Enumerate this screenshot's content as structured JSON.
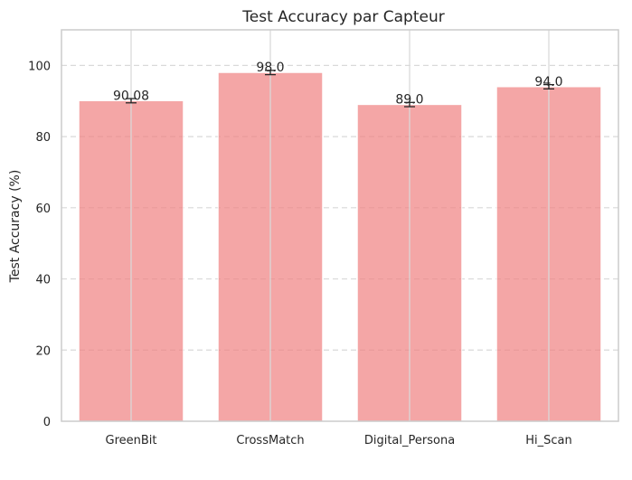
{
  "chart_data": {
    "type": "bar",
    "title": "Test Accuracy par Capteur",
    "xlabel": "",
    "ylabel": "Test Accuracy (%)",
    "categories": [
      "GreenBit",
      "CrossMatch",
      "Digital_Persona",
      "Hi_Scan"
    ],
    "values": [
      90.08,
      98.0,
      89.0,
      94.0
    ],
    "value_labels": [
      "90.08",
      "98.0",
      "89.0",
      "94.0"
    ],
    "error": [
      0.6,
      0.6,
      0.6,
      0.6
    ],
    "ylim": [
      0,
      110
    ],
    "yticks": [
      0,
      20,
      40,
      60,
      80,
      100
    ],
    "ytick_labels": [
      "0",
      "20",
      "40",
      "60",
      "80",
      "100"
    ],
    "grid": true,
    "colors": {
      "bar": "#f08080",
      "grid": "#d9d9d9",
      "axis": "#cccccc",
      "text": "#262626",
      "errorbar": "#262626"
    }
  }
}
